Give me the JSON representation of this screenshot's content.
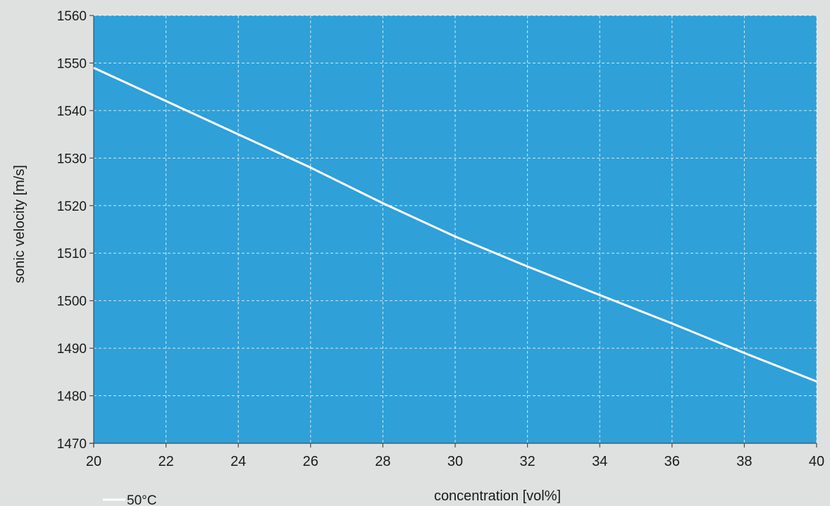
{
  "chart_data": {
    "type": "line",
    "title": "",
    "xlabel": "concentration [vol%]",
    "ylabel": "sonic velocity [m/s]",
    "xlim": [
      20,
      40
    ],
    "ylim": [
      1470,
      1560
    ],
    "xticks": [
      20,
      22,
      24,
      26,
      28,
      30,
      32,
      34,
      36,
      38,
      40
    ],
    "yticks": [
      1470,
      1480,
      1490,
      1500,
      1510,
      1520,
      1530,
      1540,
      1550,
      1560
    ],
    "grid": true,
    "legend_position": "bottom-left",
    "plot_background": "#2fa0d8",
    "series": [
      {
        "name": "50°C",
        "color": "#ffffff",
        "x": [
          20,
          22,
          24,
          26,
          28,
          30,
          32,
          34,
          36,
          38,
          40
        ],
        "y": [
          1549,
          1542,
          1535,
          1528,
          1520.5,
          1513.5,
          1507.2,
          1501.2,
          1495.2,
          1489,
          1483
        ]
      }
    ]
  }
}
